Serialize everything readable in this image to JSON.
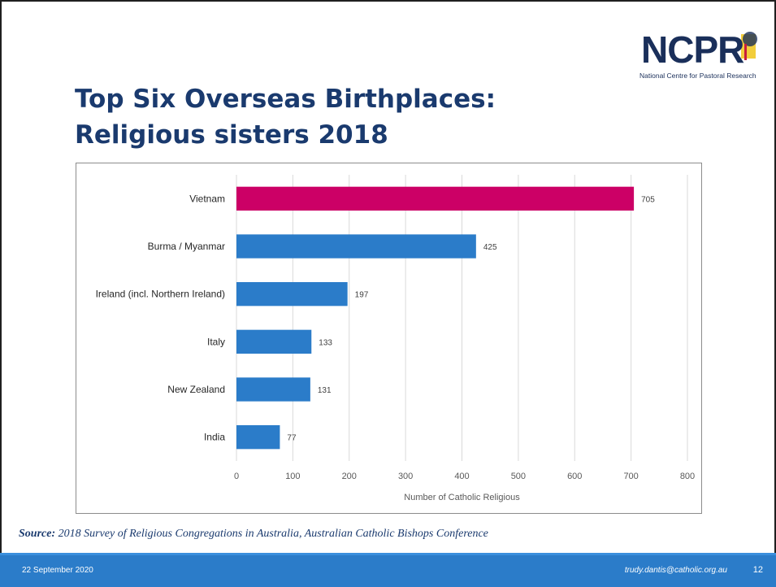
{
  "logo": {
    "name": "NCPR",
    "subtitle": "National Centre for Pastoral Research"
  },
  "slide": {
    "title_line1": "Top Six Overseas Birthplaces:",
    "title_line2": "Religious sisters 2018"
  },
  "chart_data": {
    "type": "bar",
    "orientation": "horizontal",
    "categories": [
      "Vietnam",
      "Burma / Myanmar",
      "Ireland (incl. Northern Ireland)",
      "Italy",
      "New Zealand",
      "India"
    ],
    "values": [
      705,
      425,
      197,
      133,
      131,
      77
    ],
    "xlabel": "Number of Catholic Religious",
    "ylabel": "",
    "xlim": [
      0,
      800
    ],
    "xticks": [
      0,
      100,
      200,
      300,
      400,
      500,
      600,
      700,
      800
    ],
    "grid": true,
    "colors": {
      "default": "#2b7cc9",
      "highlight": "#cc0066"
    },
    "highlight_index": 0
  },
  "source": {
    "label": "Source:",
    "text": "2018 Survey of Religious Congregations in Australia, Australian Catholic Bishops Conference"
  },
  "footer": {
    "date": "22 September 2020",
    "email": "trudy.dantis@catholic.org.au",
    "page": "12"
  }
}
